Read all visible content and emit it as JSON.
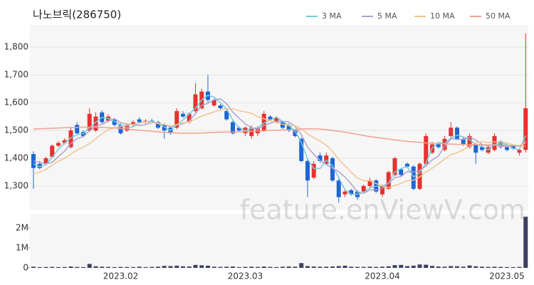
{
  "chart_data": [
    {
      "type": "candlestick",
      "title": "나노브릭(286750)",
      "watermark": "feature.enViewV.com",
      "up_color": "#e8312f",
      "down_color": "#1f65d6",
      "grid": true,
      "legend": "top-right",
      "ylim": [
        1213,
        1880
      ],
      "yticks": [
        {
          "value": 1300,
          "label": "1,300"
        },
        {
          "value": 1400,
          "label": "1,400"
        },
        {
          "value": 1500,
          "label": "1,500"
        },
        {
          "value": 1600,
          "label": "1,600"
        },
        {
          "value": 1700,
          "label": "1,700"
        },
        {
          "value": 1800,
          "label": "1,800"
        }
      ],
      "open": [
        1415,
        1380,
        1380,
        1405,
        1445,
        1455,
        1440,
        1520,
        1495,
        1500,
        1500,
        1565,
        1535,
        1540,
        1520,
        1500,
        1520,
        1540,
        1530,
        1535,
        1530,
        1520,
        1510,
        1510,
        1560,
        1530,
        1570,
        1580,
        1640,
        1590,
        1590,
        1570,
        1530,
        1510,
        1490,
        1480,
        1490,
        1500,
        1550,
        1530,
        1530,
        1520,
        1500,
        1470,
        1390,
        1330,
        1410,
        1380,
        1400,
        1320,
        1270,
        1285,
        1280,
        1280,
        1300,
        1320,
        1270,
        1290,
        1340,
        1360,
        1380,
        1370,
        1290,
        1380,
        1420,
        1450,
        1430,
        1480,
        1510,
        1470,
        1440,
        1450,
        1440,
        1420,
        1430,
        1460,
        1440,
        1445,
        1420,
        1430
      ],
      "high": [
        1425,
        1390,
        1405,
        1450,
        1462,
        1472,
        1510,
        1530,
        1500,
        1580,
        1565,
        1572,
        1558,
        1545,
        1525,
        1525,
        1538,
        1548,
        1540,
        1542,
        1535,
        1525,
        1515,
        1580,
        1570,
        1565,
        1670,
        1650,
        1700,
        1615,
        1595,
        1575,
        1535,
        1515,
        1515,
        1518,
        1515,
        1570,
        1555,
        1552,
        1535,
        1525,
        1505,
        1475,
        1395,
        1390,
        1420,
        1420,
        1405,
        1325,
        1290,
        1290,
        1285,
        1305,
        1330,
        1325,
        1305,
        1355,
        1405,
        1365,
        1385,
        1375,
        1385,
        1490,
        1460,
        1455,
        1480,
        1530,
        1515,
        1475,
        1490,
        1455,
        1450,
        1450,
        1490,
        1465,
        1450,
        1450,
        1435,
        1850
      ],
      "low": [
        1290,
        1360,
        1375,
        1400,
        1440,
        1450,
        1435,
        1485,
        1475,
        1495,
        1495,
        1525,
        1530,
        1515,
        1485,
        1495,
        1515,
        1525,
        1525,
        1525,
        1505,
        1470,
        1485,
        1505,
        1545,
        1525,
        1565,
        1575,
        1600,
        1585,
        1575,
        1535,
        1485,
        1495,
        1480,
        1470,
        1480,
        1495,
        1535,
        1525,
        1505,
        1495,
        1475,
        1385,
        1260,
        1325,
        1385,
        1375,
        1315,
        1240,
        1260,
        1265,
        1250,
        1275,
        1295,
        1275,
        1260,
        1285,
        1335,
        1335,
        1365,
        1285,
        1285,
        1375,
        1415,
        1435,
        1425,
        1475,
        1465,
        1445,
        1435,
        1380,
        1425,
        1415,
        1425,
        1435,
        1425,
        1430,
        1410,
        1420
      ],
      "close": [
        1365,
        1365,
        1400,
        1445,
        1455,
        1465,
        1500,
        1490,
        1480,
        1560,
        1550,
        1530,
        1550,
        1520,
        1490,
        1520,
        1530,
        1530,
        1535,
        1530,
        1510,
        1500,
        1490,
        1570,
        1550,
        1560,
        1630,
        1640,
        1610,
        1610,
        1580,
        1540,
        1490,
        1500,
        1510,
        1510,
        1510,
        1560,
        1540,
        1545,
        1510,
        1500,
        1480,
        1390,
        1320,
        1380,
        1390,
        1410,
        1320,
        1260,
        1280,
        1270,
        1260,
        1300,
        1320,
        1280,
        1300,
        1350,
        1400,
        1340,
        1370,
        1290,
        1380,
        1480,
        1450,
        1440,
        1470,
        1510,
        1470,
        1450,
        1480,
        1420,
        1430,
        1440,
        1480,
        1440,
        1430,
        1435,
        1430,
        1580
      ],
      "series": [
        {
          "name": "3 MA",
          "color": "#6fd0d8",
          "values": [
            1380,
            1370,
            1377,
            1403,
            1433,
            1455,
            1473,
            1485,
            1490,
            1510,
            1530,
            1547,
            1543,
            1533,
            1520,
            1510,
            1513,
            1527,
            1532,
            1532,
            1525,
            1513,
            1500,
            1520,
            1537,
            1560,
            1580,
            1610,
            1627,
            1620,
            1600,
            1577,
            1537,
            1510,
            1500,
            1507,
            1510,
            1527,
            1537,
            1548,
            1532,
            1518,
            1497,
            1457,
            1397,
            1363,
            1363,
            1393,
            1373,
            1330,
            1287,
            1270,
            1270,
            1277,
            1293,
            1300,
            1300,
            1310,
            1350,
            1363,
            1370,
            1333,
            1347,
            1383,
            1437,
            1457,
            1453,
            1473,
            1483,
            1477,
            1467,
            1450,
            1443,
            1430,
            1450,
            1453,
            1450,
            1435,
            1432,
            1482
          ]
        },
        {
          "name": "5 MA",
          "color": "#b0a0d0",
          "values": [
            1390,
            1385,
            1380,
            1385,
            1406,
            1426,
            1453,
            1471,
            1478,
            1499,
            1516,
            1522,
            1534,
            1542,
            1528,
            1522,
            1522,
            1518,
            1521,
            1529,
            1527,
            1521,
            1513,
            1520,
            1524,
            1534,
            1560,
            1590,
            1598,
            1610,
            1614,
            1596,
            1566,
            1544,
            1524,
            1510,
            1504,
            1518,
            1526,
            1533,
            1533,
            1531,
            1515,
            1485,
            1440,
            1414,
            1392,
            1378,
            1364,
            1352,
            1332,
            1308,
            1278,
            1274,
            1286,
            1286,
            1292,
            1310,
            1330,
            1334,
            1352,
            1350,
            1356,
            1372,
            1394,
            1408,
            1444,
            1470,
            1468,
            1468,
            1476,
            1466,
            1450,
            1444,
            1450,
            1442,
            1444,
            1445,
            1443,
            1463
          ]
        },
        {
          "name": "10 MA",
          "color": "#f2c490",
          "values": [
            1345,
            1350,
            1360,
            1375,
            1390,
            1400,
            1415,
            1430,
            1440,
            1453,
            1471,
            1488,
            1503,
            1510,
            1514,
            1519,
            1522,
            1526,
            1532,
            1529,
            1525,
            1522,
            1516,
            1521,
            1527,
            1531,
            1541,
            1552,
            1559,
            1567,
            1574,
            1578,
            1578,
            1571,
            1567,
            1562,
            1550,
            1542,
            1535,
            1529,
            1522,
            1518,
            1517,
            1506,
            1487,
            1474,
            1462,
            1447,
            1425,
            1396,
            1373,
            1350,
            1328,
            1319,
            1319,
            1309,
            1300,
            1294,
            1302,
            1310,
            1319,
            1321,
            1333,
            1351,
            1364,
            1380,
            1397,
            1413,
            1420,
            1431,
            1442,
            1455,
            1460,
            1456,
            1459,
            1459,
            1455,
            1448,
            1444,
            1457
          ]
        },
        {
          "name": "50 MA",
          "color": "#f2a090",
          "values": [
            1505,
            1506,
            1507,
            1508,
            1509,
            1510,
            1511,
            1511,
            1512,
            1512,
            1512,
            1511,
            1510,
            1509,
            1507,
            1505,
            1503,
            1501,
            1499,
            1497,
            1495,
            1493,
            1492,
            1491,
            1490,
            1490,
            1490,
            1491,
            1492,
            1493,
            1494,
            1494,
            1495,
            1495,
            1496,
            1497,
            1498,
            1499,
            1500,
            1501,
            1502,
            1503,
            1504,
            1505,
            1506,
            1506,
            1505,
            1503,
            1500,
            1497,
            1494,
            1490,
            1486,
            1482,
            1478,
            1475,
            1472,
            1469,
            1466,
            1463,
            1461,
            1459,
            1457,
            1455,
            1454,
            1453,
            1452,
            1451,
            1450,
            1450,
            1449,
            1449,
            1448,
            1448,
            1447,
            1447,
            1446,
            1446,
            1445,
            1445
          ]
        }
      ]
    },
    {
      "type": "bar",
      "color": "#3d4160",
      "ylim": [
        0,
        2710000
      ],
      "yticks": [
        0,
        {
          "value": 1000000,
          "label": "1M"
        },
        {
          "value": 2000000,
          "label": "2M"
        }
      ],
      "categories": [
        null,
        null,
        null,
        null,
        null,
        null,
        null,
        null,
        null,
        null,
        null,
        null,
        null,
        null,
        "2023.02",
        null,
        null,
        null,
        null,
        null,
        null,
        null,
        null,
        null,
        null,
        null,
        null,
        null,
        null,
        null,
        null,
        null,
        null,
        null,
        "2023.03",
        null,
        null,
        null,
        null,
        null,
        null,
        null,
        null,
        null,
        null,
        null,
        null,
        null,
        null,
        null,
        null,
        null,
        null,
        null,
        null,
        null,
        "2023.04",
        null,
        null,
        null,
        null,
        null,
        null,
        null,
        null,
        null,
        null,
        null,
        null,
        null,
        null,
        null,
        null,
        null,
        null,
        null,
        "2023.05",
        null,
        null,
        null
      ],
      "values": [
        60000,
        40000,
        45000,
        50000,
        40000,
        45000,
        70000,
        50000,
        40000,
        200000,
        80000,
        60000,
        50000,
        40000,
        50000,
        45000,
        40000,
        60000,
        40000,
        50000,
        60000,
        100000,
        90000,
        110000,
        80000,
        70000,
        150000,
        130000,
        110000,
        60000,
        50000,
        60000,
        70000,
        40000,
        50000,
        60000,
        50000,
        70000,
        50000,
        40000,
        60000,
        70000,
        60000,
        240000,
        90000,
        70000,
        60000,
        60000,
        70000,
        90000,
        110000,
        60000,
        50000,
        50000,
        60000,
        50000,
        60000,
        80000,
        140000,
        150000,
        90000,
        110000,
        170000,
        160000,
        100000,
        70000,
        60000,
        90000,
        80000,
        60000,
        120000,
        80000,
        60000,
        50000,
        60000,
        50000,
        40000,
        40000,
        50000,
        2560000
      ]
    }
  ]
}
